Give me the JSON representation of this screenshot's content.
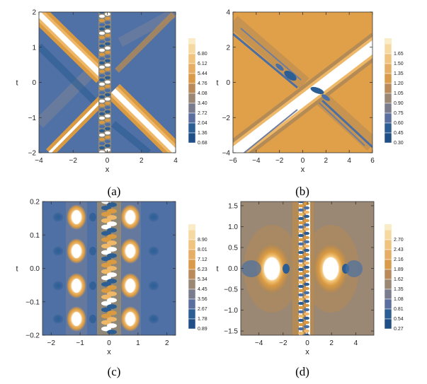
{
  "palette": {
    "low": "#2c5e94",
    "band1": "#4a6fa4",
    "band2": "#6f7e9c",
    "band3": "#8f8778",
    "band4": "#b48a55",
    "band5": "#d99a42",
    "band6": "#eeb868",
    "band7": "#f7d79b",
    "high": "#ffffff",
    "tan_bg": "#9a8774",
    "orange_bg": "#e0a04a"
  },
  "chart_data": [
    {
      "panel": "(a)",
      "type": "heatmap",
      "xlabel": "x",
      "ylabel": "t",
      "xlim": [
        -4,
        4
      ],
      "ylim": [
        -2,
        2
      ],
      "xticks": [
        "−4",
        "−2",
        "0",
        "2",
        "4"
      ],
      "yticks": [
        "−2",
        "−1",
        "0",
        "1",
        "2"
      ],
      "legend_values": [
        "6.80",
        "6.12",
        "5.44",
        "4.76",
        "4.08",
        "3.40",
        "2.72",
        "2.04",
        "1.36",
        "0.68"
      ]
    },
    {
      "panel": "(b)",
      "type": "heatmap",
      "xlabel": "x",
      "ylabel": "t",
      "xlim": [
        -6,
        6
      ],
      "ylim": [
        -4,
        4
      ],
      "xticks": [
        "−6",
        "−4",
        "−2",
        "0",
        "2",
        "4",
        "6"
      ],
      "yticks": [
        "−4",
        "−2",
        "0",
        "2",
        "4"
      ],
      "legend_values": [
        "1.65",
        "1.50",
        "1.35",
        "1.20",
        "1.05",
        "0.90",
        "0.75",
        "0.60",
        "0.45",
        "0.30"
      ]
    },
    {
      "panel": "(c)",
      "type": "heatmap",
      "xlabel": "x",
      "ylabel": "t",
      "xlim": [
        -2.3,
        2.3
      ],
      "ylim": [
        -0.2,
        0.2
      ],
      "xticks": [
        "−2",
        "−1",
        "0",
        "1",
        "2"
      ],
      "yticks": [
        "−0.2",
        "−0.1",
        "0.0",
        "0.1",
        "0.2"
      ],
      "legend_values": [
        "8.90",
        "8.01",
        "7.12",
        "6.23",
        "5.34",
        "4.45",
        "3.56",
        "2.67",
        "1.78",
        "0.89"
      ]
    },
    {
      "panel": "(d)",
      "type": "heatmap",
      "xlabel": "x",
      "ylabel": "t",
      "xlim": [
        -5.5,
        5.5
      ],
      "ylim": [
        -1.6,
        1.6
      ],
      "xticks": [
        "−4",
        "−2",
        "0",
        "2",
        "4"
      ],
      "yticks": [
        "−1.5",
        "−1.0",
        "−0.5",
        "0.0",
        "0.5",
        "1.0",
        "1.5"
      ],
      "legend_values": [
        "2.70",
        "2.43",
        "2.16",
        "1.89",
        "1.62",
        "1.35",
        "1.08",
        "0.81",
        "0.54",
        "0.27"
      ]
    }
  ]
}
